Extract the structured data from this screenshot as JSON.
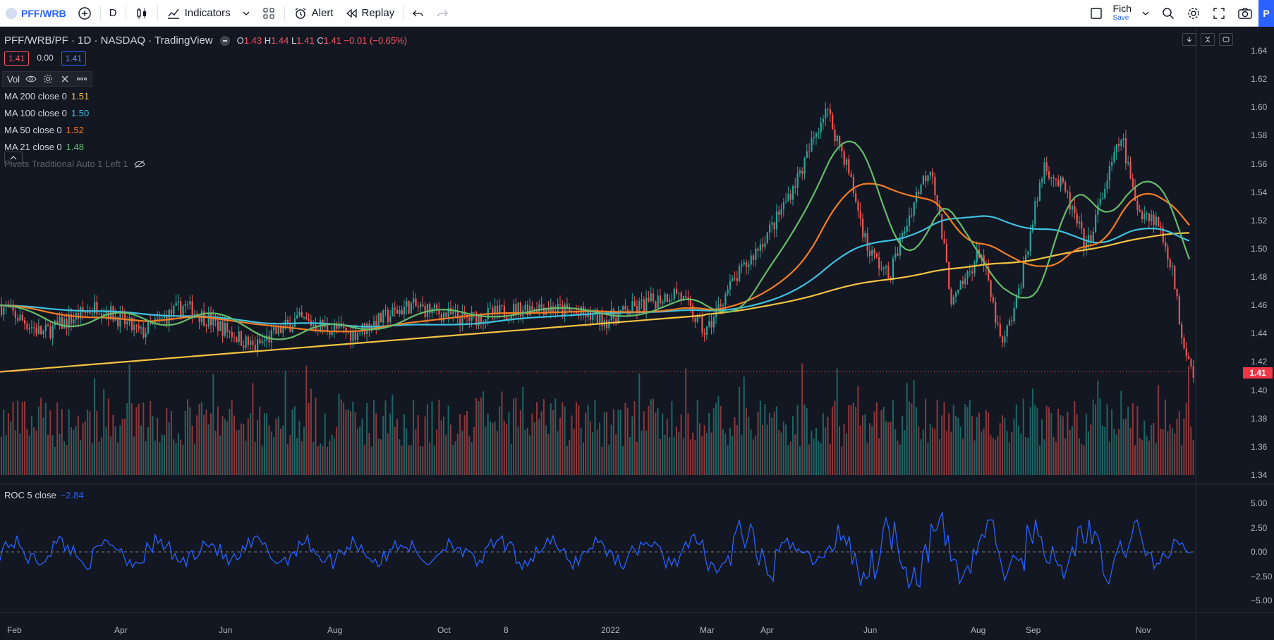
{
  "toolbar": {
    "symbol": "PFF/WRB",
    "interval": "D",
    "indicators_label": "Indicators",
    "alert_label": "Alert",
    "replay_label": "Replay",
    "layout_name": "Fich",
    "save_label": "Save",
    "right_tab": "P"
  },
  "header": {
    "title": "PFF/WRB/PF · 1D · NASDAQ · TradingView",
    "o_label": "O",
    "o": "1.43",
    "h_label": "H",
    "h": "1.44",
    "l_label": "L",
    "l": "1.41",
    "c_label": "C",
    "c": "1.41",
    "change": "−0.01 (−0.65%)"
  },
  "price_boxes": {
    "bid": "1.41",
    "spread": "0.00",
    "ask": "1.41"
  },
  "volume_label": "Vol",
  "indicators": [
    {
      "name": "MA 200 close 0",
      "value": "1.51",
      "color": "#f5c342"
    },
    {
      "name": "MA 100 close 0",
      "value": "1.50",
      "color": "#3ec1e0"
    },
    {
      "name": "MA 50 close 0",
      "value": "1.52",
      "color": "#f57c22"
    },
    {
      "name": "MA 21 close 0",
      "value": "1.48",
      "color": "#66bb6a"
    }
  ],
  "pivots_label": "Pivots Traditional Auto 1 Left 1",
  "roc": {
    "name": "ROC 5 close",
    "value": "−2.84"
  },
  "last_price": "1.41",
  "price_axis": [
    "1.64",
    "1.62",
    "1.60",
    "1.58",
    "1.56",
    "1.54",
    "1.52",
    "1.50",
    "1.48",
    "1.46",
    "1.44",
    "1.42",
    "1.40",
    "1.38",
    "1.36",
    "1.34"
  ],
  "roc_axis": [
    "5.00",
    "2.50",
    "0.00",
    "−2.50",
    "−5.00"
  ],
  "time_axis": [
    "Feb",
    "Apr",
    "Jun",
    "Aug",
    "Oct",
    "8",
    "2022",
    "Mar",
    "Apr",
    "Jun",
    "Aug",
    "Sep",
    "Nov"
  ],
  "colors": {
    "up": "#26a69a",
    "down": "#ef5350",
    "roc": "#2962ff",
    "bg": "#131722"
  }
}
